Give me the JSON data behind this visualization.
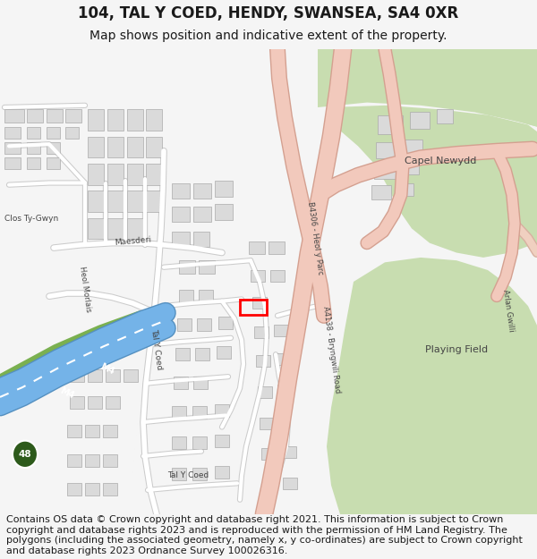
{
  "title": "104, TAL Y COED, HENDY, SWANSEA, SA4 0XR",
  "subtitle": "Map shows position and indicative extent of the property.",
  "footer": "Contains OS data © Crown copyright and database right 2021. This information is subject to Crown copyright and database rights 2023 and is reproduced with the permission of HM Land Registry. The polygons (including the associated geometry, namely x, y co-ordinates) are subject to Crown copyright and database rights 2023 Ordnance Survey 100026316.",
  "bg_color": "#f5f5f5",
  "map_bg": "#ffffff",
  "road_fill": "#f2c9bc",
  "road_edge": "#d4a090",
  "minor_road_fill": "#ffffff",
  "minor_road_edge": "#cccccc",
  "motorway_fill": "#74b3e8",
  "motorway_edge": "#5590c0",
  "green_fill": "#c8ddb0",
  "green_dark": "#a8c890",
  "building_fill": "#dadada",
  "building_edge": "#aaaaaa",
  "plot_edge": "#ff0000",
  "text_color": "#1a1a1a",
  "label_color": "#444444",
  "title_fontsize": 12,
  "subtitle_fontsize": 10,
  "footer_fontsize": 8
}
